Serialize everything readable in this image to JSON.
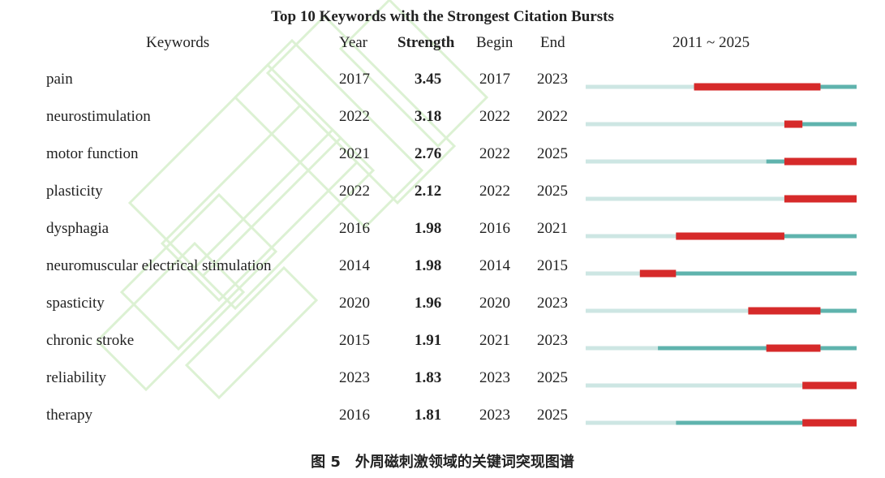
{
  "chart_data": {
    "type": "table",
    "title": "Top 10 Keywords with the Strongest Citation Bursts",
    "columns": [
      "Keywords",
      "Year",
      "Strength",
      "Begin",
      "End",
      "2011 ~ 2025"
    ],
    "range_start": 2011,
    "range_end": 2025,
    "rows": [
      {
        "keyword": "pain",
        "year": "2017",
        "strength": "3.45",
        "begin": "2017",
        "end": "2023"
      },
      {
        "keyword": "neurostimulation",
        "year": "2022",
        "strength": "3.18",
        "begin": "2022",
        "end": "2022"
      },
      {
        "keyword": "motor function",
        "year": "2021",
        "strength": "2.76",
        "begin": "2022",
        "end": "2025"
      },
      {
        "keyword": "plasticity",
        "year": "2022",
        "strength": "2.12",
        "begin": "2022",
        "end": "2025"
      },
      {
        "keyword": "dysphagia",
        "year": "2016",
        "strength": "1.98",
        "begin": "2016",
        "end": "2021"
      },
      {
        "keyword": "neuromuscular electrical stimulation",
        "year": "2014",
        "strength": "1.98",
        "begin": "2014",
        "end": "2015"
      },
      {
        "keyword": "spasticity",
        "year": "2020",
        "strength": "1.96",
        "begin": "2020",
        "end": "2023"
      },
      {
        "keyword": "chronic stroke",
        "year": "2015",
        "strength": "1.91",
        "begin": "2021",
        "end": "2023"
      },
      {
        "keyword": "reliability",
        "year": "2023",
        "strength": "1.83",
        "begin": "2023",
        "end": "2025"
      },
      {
        "keyword": "therapy",
        "year": "2016",
        "strength": "1.81",
        "begin": "2023",
        "end": "2025"
      }
    ],
    "colors": {
      "before": "#cde6e3",
      "present": "#5fb3ad",
      "burst": "#d62a2a"
    }
  },
  "caption": "图 5　外周磁刺激领域的关键词突现图谱"
}
